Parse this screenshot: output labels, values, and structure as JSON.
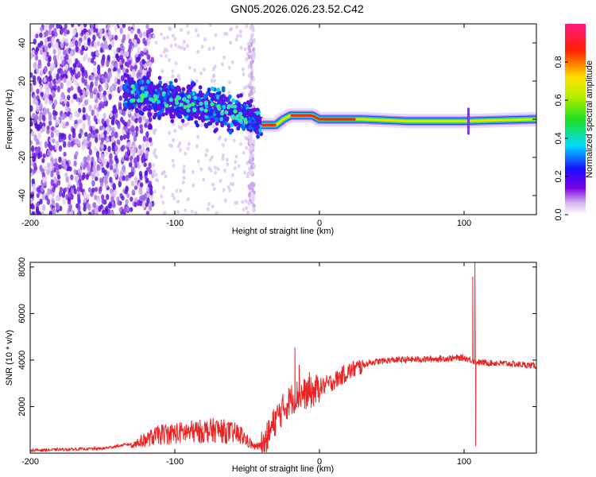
{
  "title": "GN05.2026.026.23.52.C42",
  "colors": {
    "snr_line": "#ee2222",
    "frame": "#000000"
  },
  "chart_data": [
    {
      "type": "heatmap",
      "name": "spectrogram",
      "xlabel": "Height of straight line (km)",
      "ylabel": "Frequency (Hz)",
      "xlim": [
        -200,
        150
      ],
      "ylim": [
        -50,
        50
      ],
      "xticks": [
        -200,
        -100,
        0,
        100
      ],
      "yticks": [
        -40,
        -20,
        0,
        20,
        40
      ],
      "colorbar": {
        "label": "Normalized spectral amplitude",
        "range": [
          0,
          1
        ],
        "ticks": [
          "0.0",
          "0.2",
          "0.4",
          "0.6",
          "0.8"
        ],
        "tick_values": [
          0,
          0.2,
          0.4,
          0.6,
          0.8
        ],
        "colormap": "rainbow (white-violet-blue-cyan-green-yellow-red-magenta)"
      },
      "centre_line": [
        {
          "x": -135,
          "y": 14
        },
        {
          "x": -100,
          "y": 10
        },
        {
          "x": -70,
          "y": 5
        },
        {
          "x": -50,
          "y": 2
        },
        {
          "x": -40,
          "y": -3
        },
        {
          "x": -30,
          "y": -3
        },
        {
          "x": -25,
          "y": 0
        },
        {
          "x": -20,
          "y": 2
        },
        {
          "x": -5,
          "y": 2
        },
        {
          "x": 0,
          "y": 0
        },
        {
          "x": 30,
          "y": 0
        },
        {
          "x": 60,
          "y": -1
        },
        {
          "x": 100,
          "y": -1
        },
        {
          "x": 150,
          "y": 0
        }
      ]
    },
    {
      "type": "line",
      "name": "snr",
      "xlabel": "Height of straight line (km)",
      "ylabel": "SNR (10 * v/v)",
      "xlim": [
        -200,
        150
      ],
      "ylim": [
        0,
        8200
      ],
      "xticks": [
        -200,
        -100,
        0,
        100
      ],
      "yticks": [
        2000,
        4000,
        6000,
        8000
      ],
      "envelope": [
        {
          "x": -200,
          "y": 120
        },
        {
          "x": -150,
          "y": 200
        },
        {
          "x": -130,
          "y": 400
        },
        {
          "x": -110,
          "y": 900
        },
        {
          "x": -90,
          "y": 1000
        },
        {
          "x": -70,
          "y": 1100
        },
        {
          "x": -55,
          "y": 900
        },
        {
          "x": -45,
          "y": 300
        },
        {
          "x": -38,
          "y": 400
        },
        {
          "x": -30,
          "y": 1500
        },
        {
          "x": -20,
          "y": 2300
        },
        {
          "x": -15,
          "y": 2500
        },
        {
          "x": -5,
          "y": 2600
        },
        {
          "x": 0,
          "y": 2800
        },
        {
          "x": 10,
          "y": 3100
        },
        {
          "x": 20,
          "y": 3500
        },
        {
          "x": 35,
          "y": 3900
        },
        {
          "x": 50,
          "y": 4000
        },
        {
          "x": 80,
          "y": 4050
        },
        {
          "x": 100,
          "y": 4100
        },
        {
          "x": 110,
          "y": 3900
        },
        {
          "x": 130,
          "y": 3850
        },
        {
          "x": 150,
          "y": 3750
        }
      ],
      "spikes": [
        {
          "x": -17,
          "y": 4550
        },
        {
          "x": -14,
          "y": 3800
        },
        {
          "x": -7,
          "y": 3500
        },
        {
          "x": 106,
          "y": 7600
        },
        {
          "x": 107.5,
          "y": 8200
        },
        {
          "x": 108,
          "y": 300
        }
      ]
    }
  ]
}
